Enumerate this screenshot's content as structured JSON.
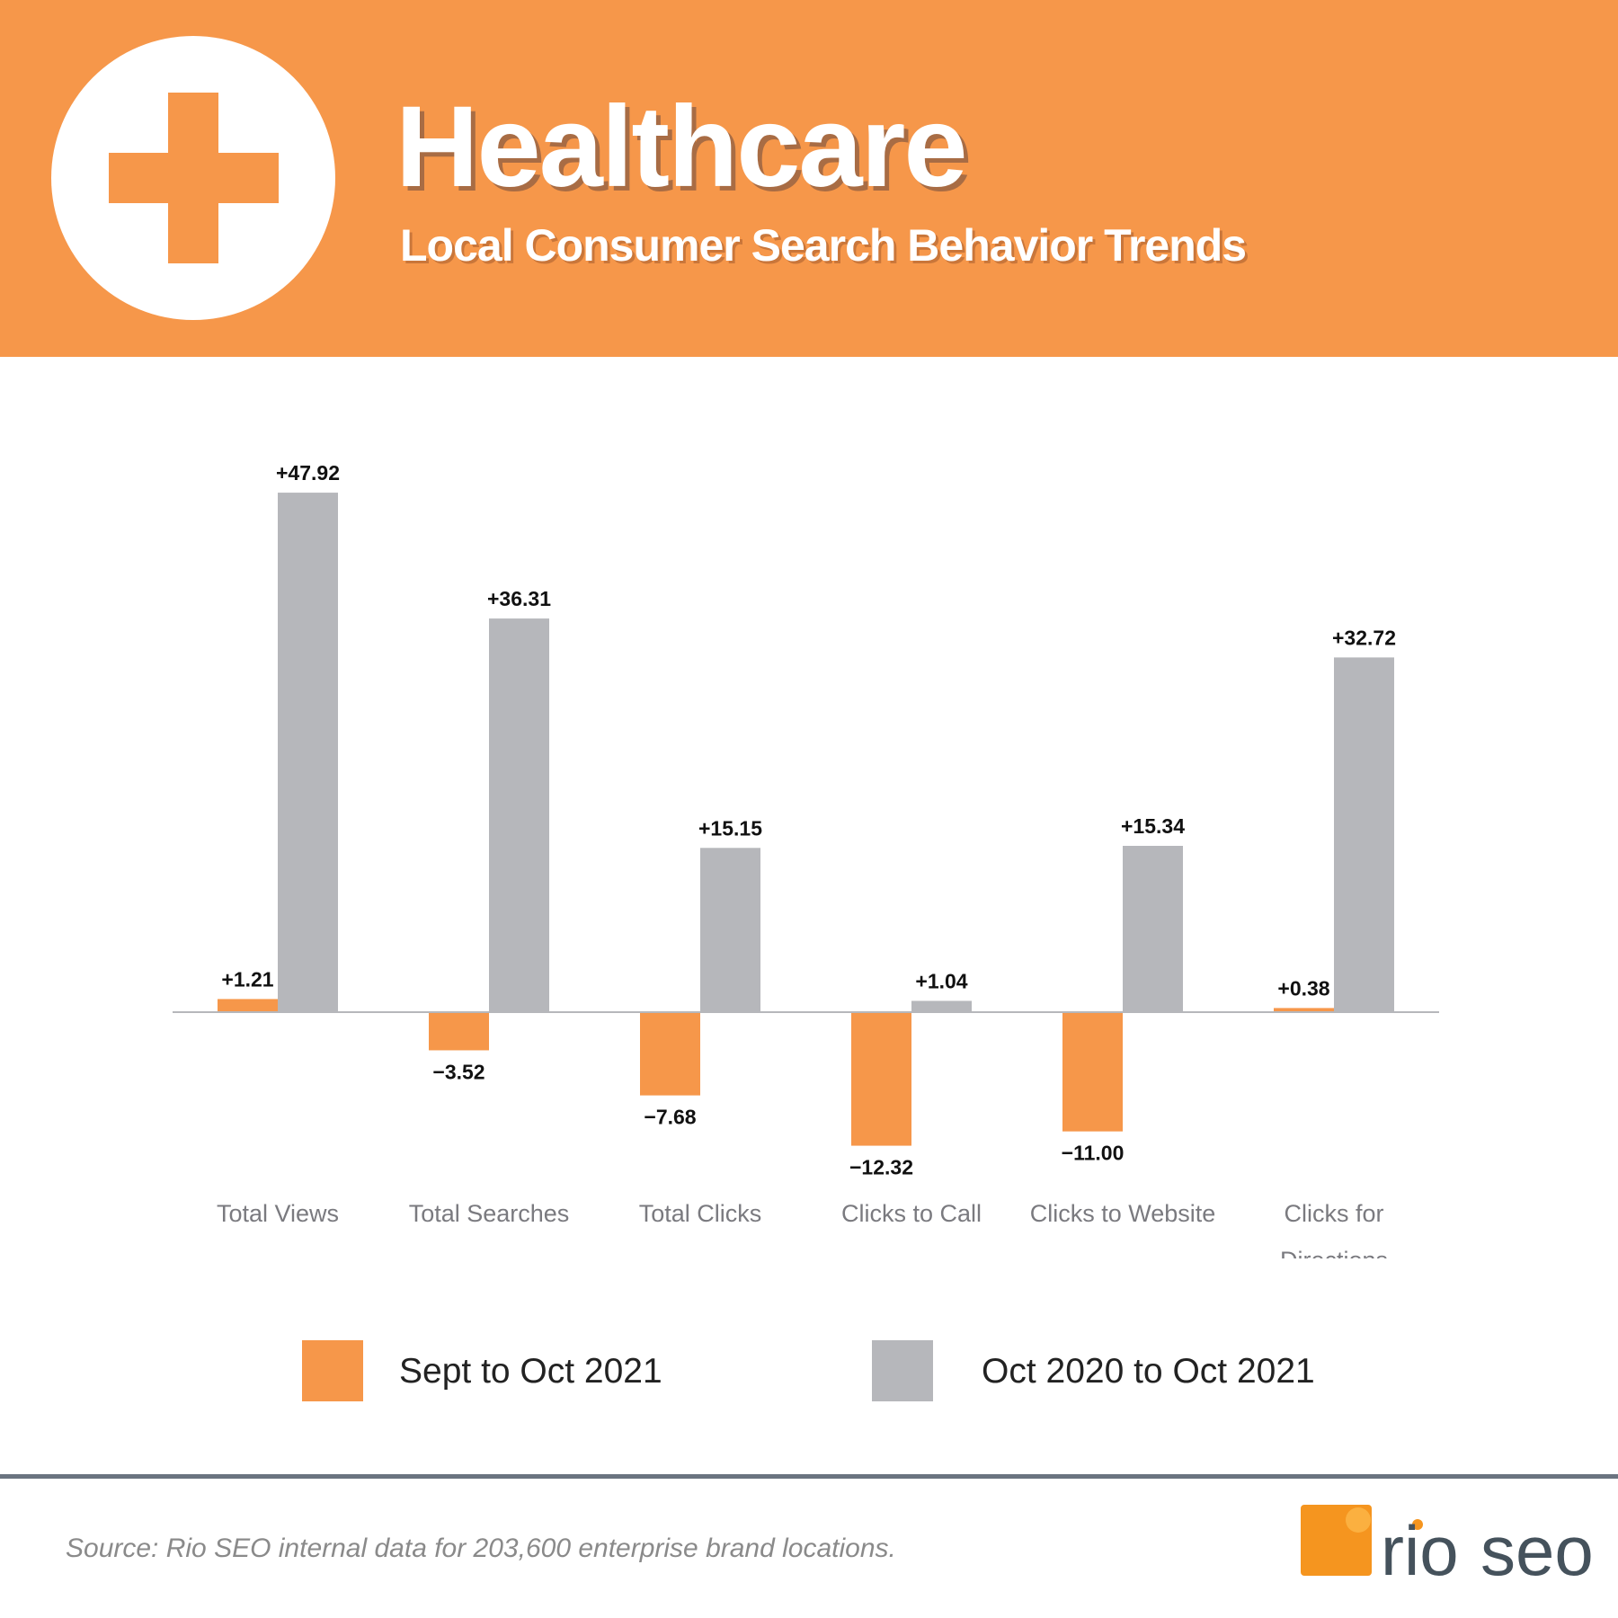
{
  "header": {
    "title": "Healthcare",
    "subtitle": "Local Consumer Search Behavior Trends",
    "icon": "medical-cross-icon",
    "background": "#f6974a"
  },
  "chart_data": {
    "type": "bar",
    "categories": [
      "Total Views",
      "Total Searches",
      "Total Clicks",
      "Clicks to Call",
      "Clicks to Website",
      "Clicks for Directions"
    ],
    "series": [
      {
        "name": "Sept to Oct 2021",
        "color": "#f6974a",
        "values": [
          1.21,
          -3.52,
          -7.68,
          -12.32,
          -11.0,
          0.38
        ],
        "labels": [
          "+1.21",
          "−3.52",
          "−7.68",
          "−12.32",
          "−11.00",
          "+0.38"
        ]
      },
      {
        "name": "Oct 2020 to Oct 2021",
        "color": "#b6b7bb",
        "values": [
          47.92,
          36.31,
          15.15,
          1.04,
          15.34,
          32.72
        ],
        "labels": [
          "+47.92",
          "+36.31",
          "+15.15",
          "+1.04",
          "+15.34",
          "+32.72"
        ]
      }
    ],
    "legend": "bottom",
    "grid": false,
    "ylim": [
      -15,
      50
    ]
  },
  "footer": {
    "source": "Source: Rio SEO internal data for 203,600 enterprise brand locations.",
    "logo_text": "rio seo"
  }
}
